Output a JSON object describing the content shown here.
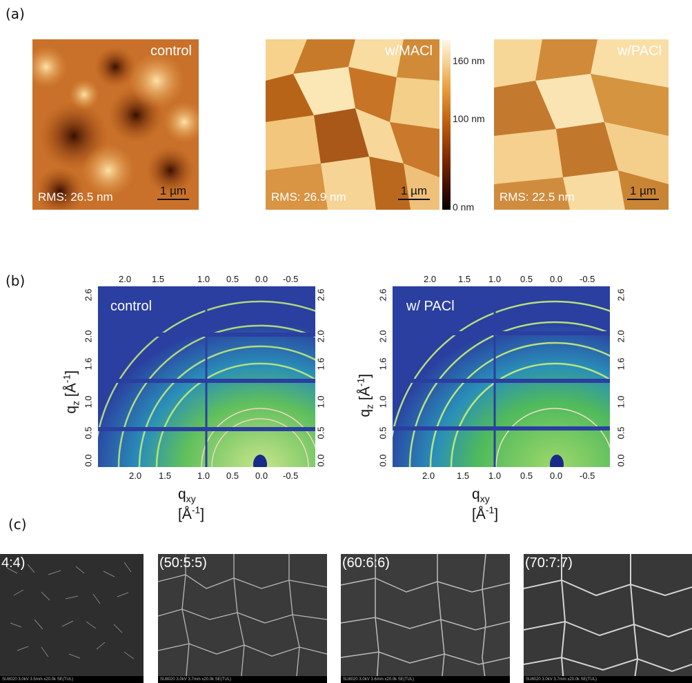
{
  "panels": {
    "a_label": "(a)",
    "b_label": "(b)",
    "c_label": "(c)"
  },
  "afm": [
    {
      "title": "control",
      "rms": "RMS: 26.5 nm",
      "scale": "1 µm"
    },
    {
      "title": "w/MACl",
      "rms": "RMS: 26.9 nm",
      "scale": "1 µm"
    },
    {
      "title": "w/PACl",
      "rms": "RMS: 22.5 nm",
      "scale": "1 µm"
    }
  ],
  "colorbar": {
    "labels": [
      "160 nm",
      "100 nm",
      "0 nm"
    ]
  },
  "gixd": [
    {
      "title": "control"
    },
    {
      "title": "w/ PACl"
    }
  ],
  "gixd_axes": {
    "x_ticks": [
      "2.0",
      "1.5",
      "1.0",
      "0.5",
      "0.0",
      "-0.5"
    ],
    "y_ticks": [
      "0.0",
      "0.5",
      "1.0",
      "1.6",
      "2.0",
      "2.6"
    ],
    "xlabel_main": "q",
    "xlabel_sub": "xy",
    "xlabel_unit": " [Å",
    "xlabel_sup": "-1",
    "xlabel_end": "]",
    "ylabel_main": "q",
    "ylabel_sub": "z",
    "ylabel_unit": " [Å",
    "ylabel_sup": "-1",
    "ylabel_end": "]"
  },
  "sem": [
    {
      "label": "4:4)",
      "footer": "SU8020 3.0kV 3.5mm x20.0k SE(TUL)"
    },
    {
      "label": "(50:5:5)",
      "footer": "SU8020 3.0kV 3.7mm x20.0k SE(TUL)"
    },
    {
      "label": "(60:6:6)",
      "footer": "SU8020 3.0kV 3.6mm x20.0k SE(TUL)"
    },
    {
      "label": "(70:7:7)",
      "footer": "SU8020 3.0kV 3.7mm x20.0k SE(TUL)"
    }
  ],
  "colors": {
    "afm_dark": "#7a2a00",
    "afm_mid": "#d98b36",
    "afm_light": "#fbe3b0",
    "gixd_bg": "#2a3fa0",
    "gixd_green": "#6fc45a",
    "sem_gray": "#3a3a3a"
  }
}
